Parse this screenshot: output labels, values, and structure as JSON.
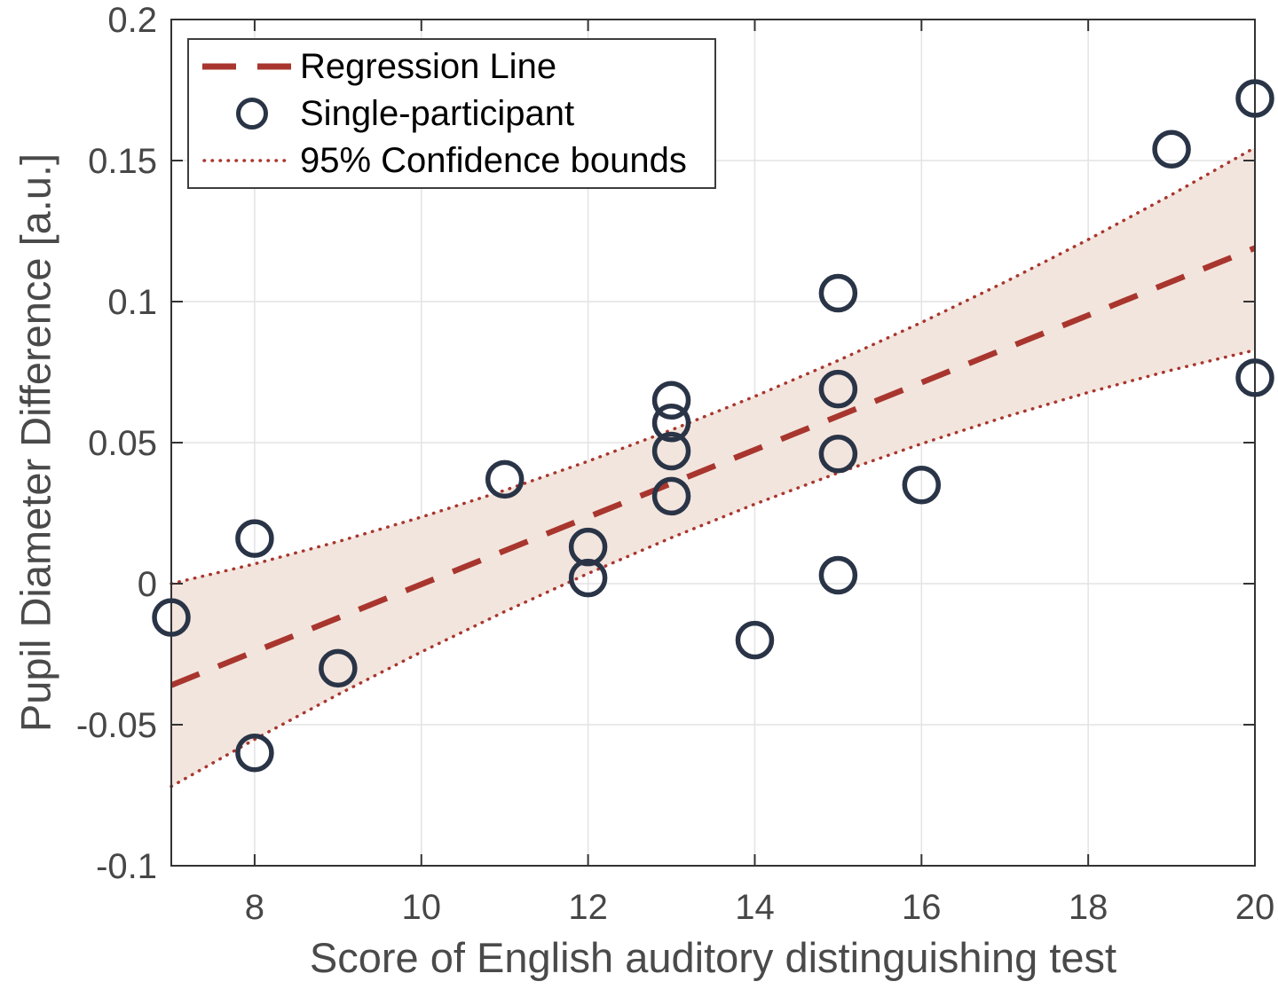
{
  "figure": {
    "kind": "matlab-style-scatter-with-regression"
  },
  "legend": {
    "position": "northwest",
    "items": [
      {
        "label": "Regression Line",
        "glyph": "dashed-line-sample"
      },
      {
        "label": "Single-participant",
        "glyph": "open-circle-sample"
      },
      {
        "label": "95% Confidence bounds",
        "glyph": "dotted-line-sample"
      }
    ]
  },
  "colors": {
    "accent_red": "#a8362e",
    "band_fill": "#f2e5dd",
    "marker_navy": "#2a3447",
    "grid": "#e3e3e3",
    "axis_box": "#333333",
    "tick_text": "#474747",
    "label_text": "#4a4a4a",
    "legend_text": "#000000",
    "background": "#ffffff"
  },
  "chart_data": {
    "type": "scatter",
    "title": "",
    "xlabel": "Score of English auditory distinguishing test",
    "ylabel": "Pupil Diameter Difference [a.u.]",
    "xlim": [
      7,
      20
    ],
    "ylim": [
      -0.1,
      0.2
    ],
    "grid": true,
    "legend_position": "northwest",
    "xticks": {
      "values": [
        8,
        10,
        12,
        14,
        16,
        18,
        20
      ],
      "labels": [
        "8",
        "10",
        "12",
        "14",
        "16",
        "18",
        "20"
      ]
    },
    "yticks": {
      "values": [
        -0.1,
        -0.05,
        0,
        0.05,
        0.1,
        0.15,
        0.2
      ],
      "labels": [
        "-0.1",
        "-0.05",
        "0",
        "0.05",
        "0.1",
        "0.15",
        "0.2"
      ]
    },
    "series": [
      {
        "name": "Single-participant",
        "type": "scatter",
        "marker": "open-circle",
        "points": [
          [
            7,
            -0.012
          ],
          [
            8,
            0.016
          ],
          [
            8,
            -0.06
          ],
          [
            9,
            -0.03
          ],
          [
            11,
            0.037
          ],
          [
            12,
            0.013
          ],
          [
            12,
            0.002
          ],
          [
            13,
            0.065
          ],
          [
            13,
            0.057
          ],
          [
            13,
            0.047
          ],
          [
            13,
            0.031
          ],
          [
            14,
            -0.02
          ],
          [
            15,
            0.103
          ],
          [
            15,
            0.069
          ],
          [
            15,
            0.046
          ],
          [
            15,
            0.003
          ],
          [
            16,
            0.035
          ],
          [
            19,
            0.154
          ],
          [
            20,
            0.172
          ],
          [
            20,
            0.073
          ]
        ]
      },
      {
        "name": "Regression Line",
        "type": "line",
        "style": "dashed",
        "points": [
          [
            7,
            -0.036
          ],
          [
            20,
            0.119
          ]
        ]
      },
      {
        "name": "95% Confidence bounds",
        "type": "band",
        "style": "dotted",
        "x": [
          7,
          8,
          9,
          10,
          11,
          12,
          13,
          14,
          15,
          16,
          17,
          18,
          19,
          20
        ],
        "upper": [
          0.0,
          0.007,
          0.0149,
          0.0236,
          0.0331,
          0.0434,
          0.0545,
          0.0664,
          0.0791,
          0.0926,
          0.1069,
          0.122,
          0.1379,
          0.1546
        ],
        "lower": [
          -0.0719,
          -0.0552,
          -0.0393,
          -0.0242,
          -0.0099,
          0.0036,
          0.0163,
          0.0282,
          0.0393,
          0.0496,
          0.0591,
          0.0678,
          0.0757,
          0.0828
        ]
      }
    ]
  }
}
